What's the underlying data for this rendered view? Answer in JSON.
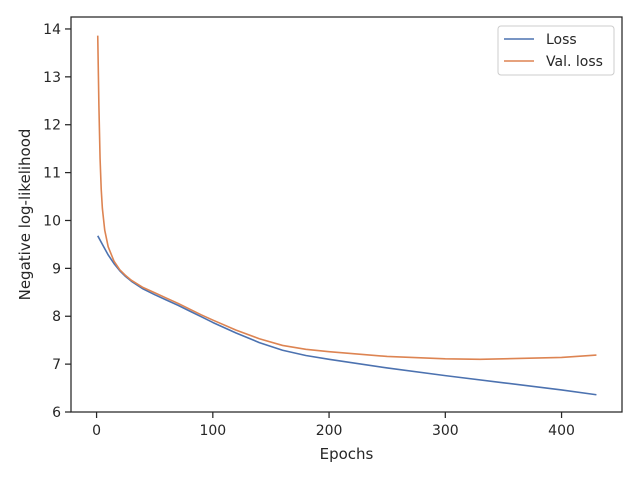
{
  "chart_data": {
    "type": "line",
    "xlabel": "Epochs",
    "ylabel": "Negative log-likelihood",
    "xlim": [
      -22,
      452
    ],
    "ylim": [
      6,
      14.25
    ],
    "xticks": [
      0,
      100,
      200,
      300,
      400
    ],
    "yticks": [
      6,
      7,
      8,
      9,
      10,
      11,
      12,
      13,
      14
    ],
    "grid": false,
    "legend_position": "top-right",
    "series": [
      {
        "name": "Loss",
        "color": "#4c72b0",
        "x": [
          1,
          5,
          10,
          15,
          20,
          25,
          30,
          40,
          50,
          60,
          70,
          80,
          90,
          100,
          120,
          140,
          160,
          180,
          200,
          250,
          300,
          350,
          400,
          430
        ],
        "y": [
          9.68,
          9.5,
          9.28,
          9.1,
          8.95,
          8.83,
          8.73,
          8.57,
          8.45,
          8.34,
          8.23,
          8.11,
          7.99,
          7.87,
          7.65,
          7.45,
          7.29,
          7.18,
          7.1,
          6.92,
          6.76,
          6.61,
          6.46,
          6.36
        ]
      },
      {
        "name": "Val. loss",
        "color": "#dd8452",
        "x": [
          1,
          2,
          3,
          4,
          5,
          7,
          10,
          15,
          20,
          25,
          30,
          40,
          50,
          60,
          70,
          80,
          90,
          100,
          120,
          140,
          160,
          180,
          200,
          250,
          300,
          330,
          350,
          400,
          430
        ],
        "y": [
          13.86,
          12.4,
          11.3,
          10.65,
          10.25,
          9.8,
          9.45,
          9.15,
          8.97,
          8.85,
          8.75,
          8.6,
          8.49,
          8.38,
          8.27,
          8.15,
          8.03,
          7.92,
          7.71,
          7.53,
          7.39,
          7.31,
          7.26,
          7.16,
          7.11,
          7.1,
          7.11,
          7.14,
          7.19
        ]
      }
    ]
  }
}
